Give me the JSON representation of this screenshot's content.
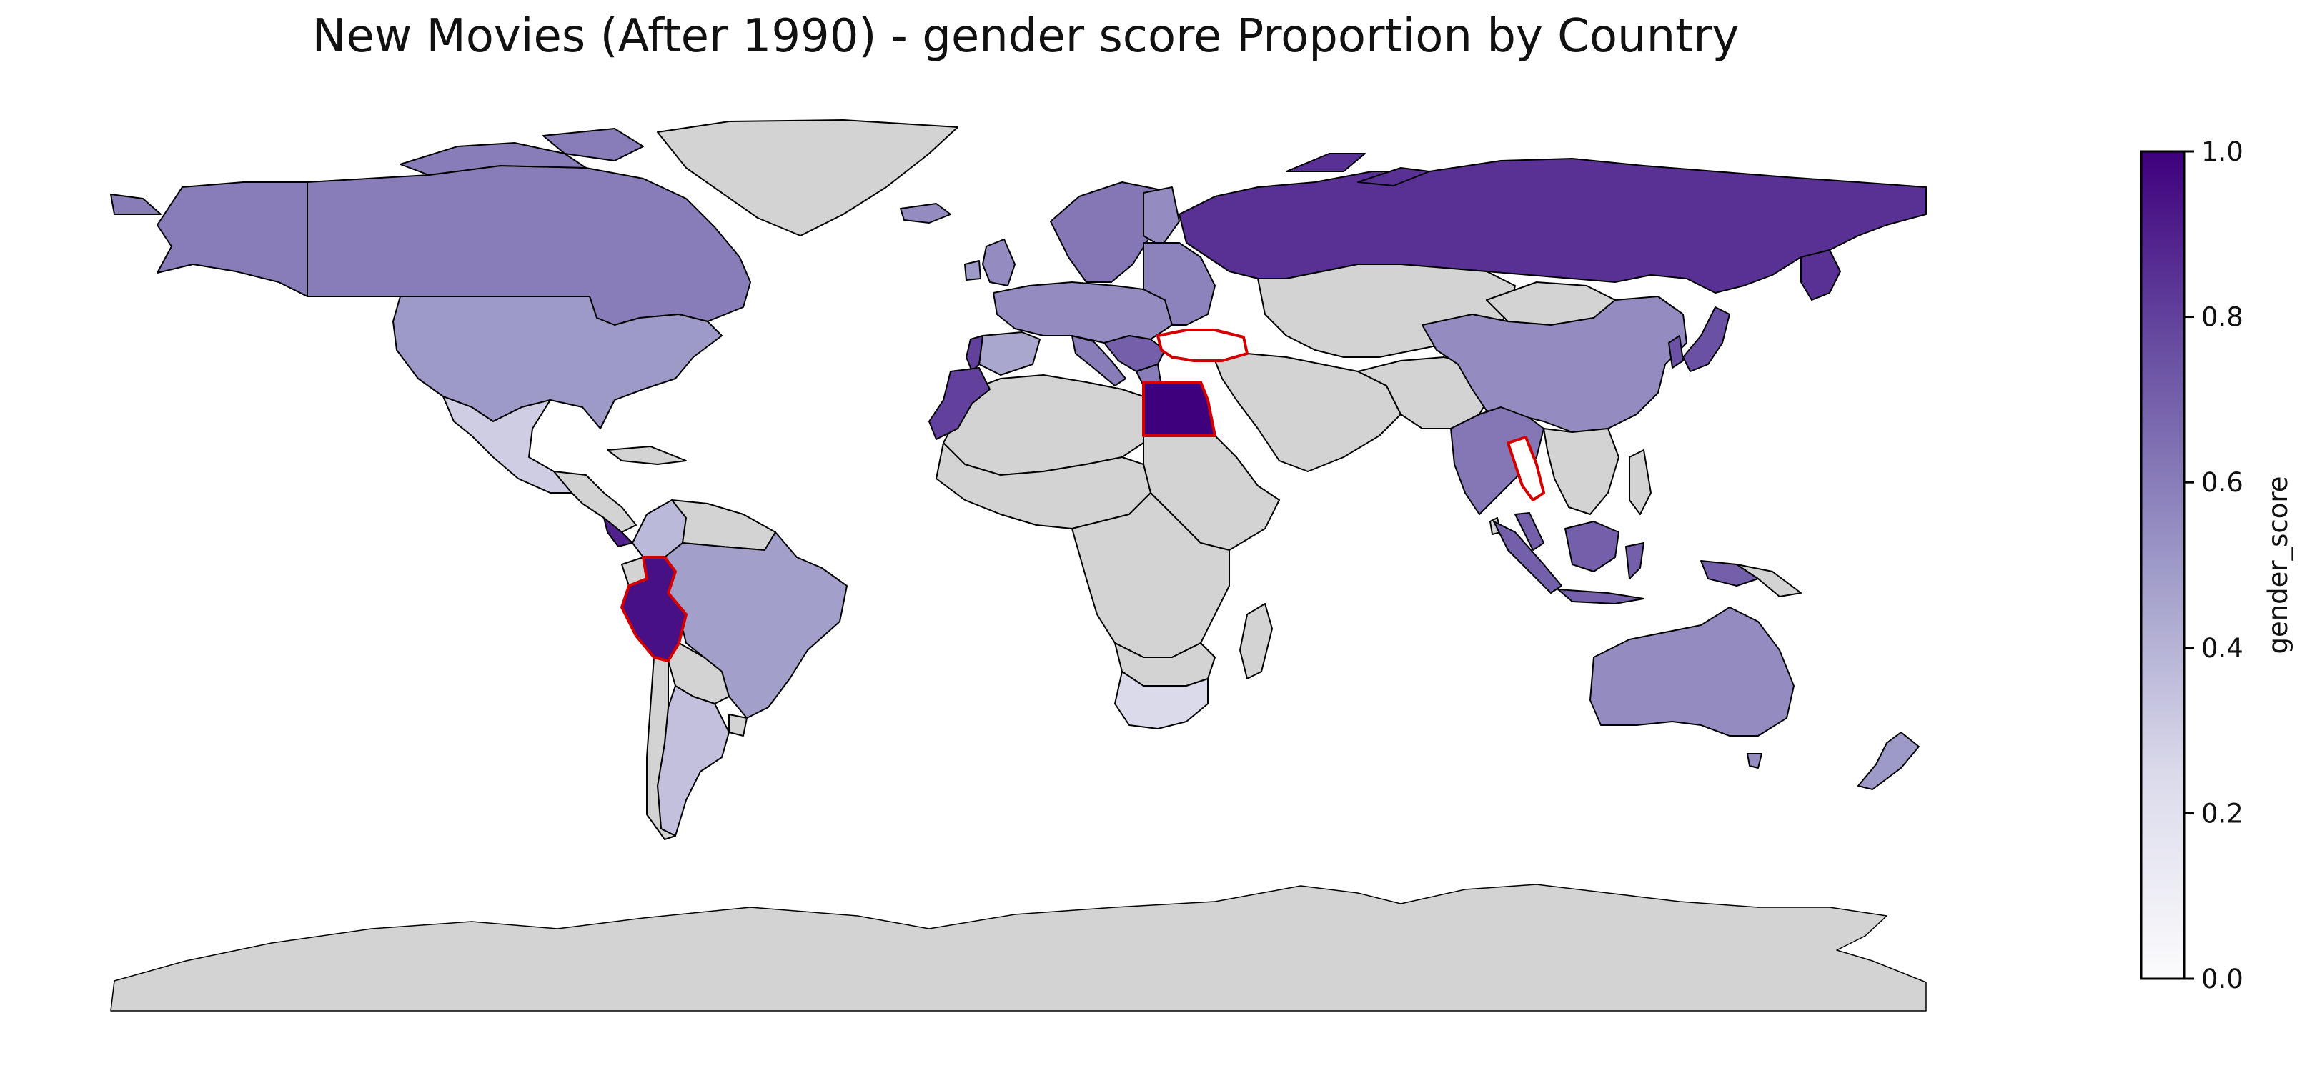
{
  "title": "New Movies (After 1990) - gender score Proportion by Country",
  "colors": {
    "no_data": "#d3d3d3",
    "border": "#000000",
    "highlight_border": "#d40000",
    "cmap_low": "#fcfbfd",
    "cmap_high": "#3f007d"
  },
  "colorbar": {
    "label": "gender_score",
    "min": 0.0,
    "max": 1.0,
    "ticks": [
      {
        "value": 0.0,
        "label": "0.0"
      },
      {
        "value": 0.2,
        "label": "0.2"
      },
      {
        "value": 0.4,
        "label": "0.4"
      },
      {
        "value": 0.6,
        "label": "0.6"
      },
      {
        "value": 0.8,
        "label": "0.8"
      },
      {
        "value": 1.0,
        "label": "1.0"
      }
    ]
  },
  "chart_data": {
    "type": "choropleth",
    "metric": "gender_score",
    "countries": [
      {
        "name": "Russia",
        "value": 0.85
      },
      {
        "name": "Canada",
        "value": 0.6
      },
      {
        "name": "United States",
        "value": 0.5
      },
      {
        "name": "Mexico",
        "value": 0.3
      },
      {
        "name": "Brazil",
        "value": 0.48
      },
      {
        "name": "Argentina",
        "value": 0.35
      },
      {
        "name": "Peru",
        "value": 0.95,
        "highlight": true
      },
      {
        "name": "Egypt",
        "value": 1.0,
        "highlight": true
      },
      {
        "name": "Morocco",
        "value": 0.8
      },
      {
        "name": "South Africa",
        "value": 0.25
      },
      {
        "name": "China",
        "value": 0.55
      },
      {
        "name": "India",
        "value": 0.62
      },
      {
        "name": "Australia",
        "value": 0.55
      },
      {
        "name": "Indonesia",
        "value": 0.7
      },
      {
        "name": "Japan",
        "value": 0.75
      },
      {
        "name": "Turkey",
        "value": null,
        "highlight": true
      },
      {
        "name": "Thailand",
        "value": null,
        "highlight": true
      }
    ]
  }
}
